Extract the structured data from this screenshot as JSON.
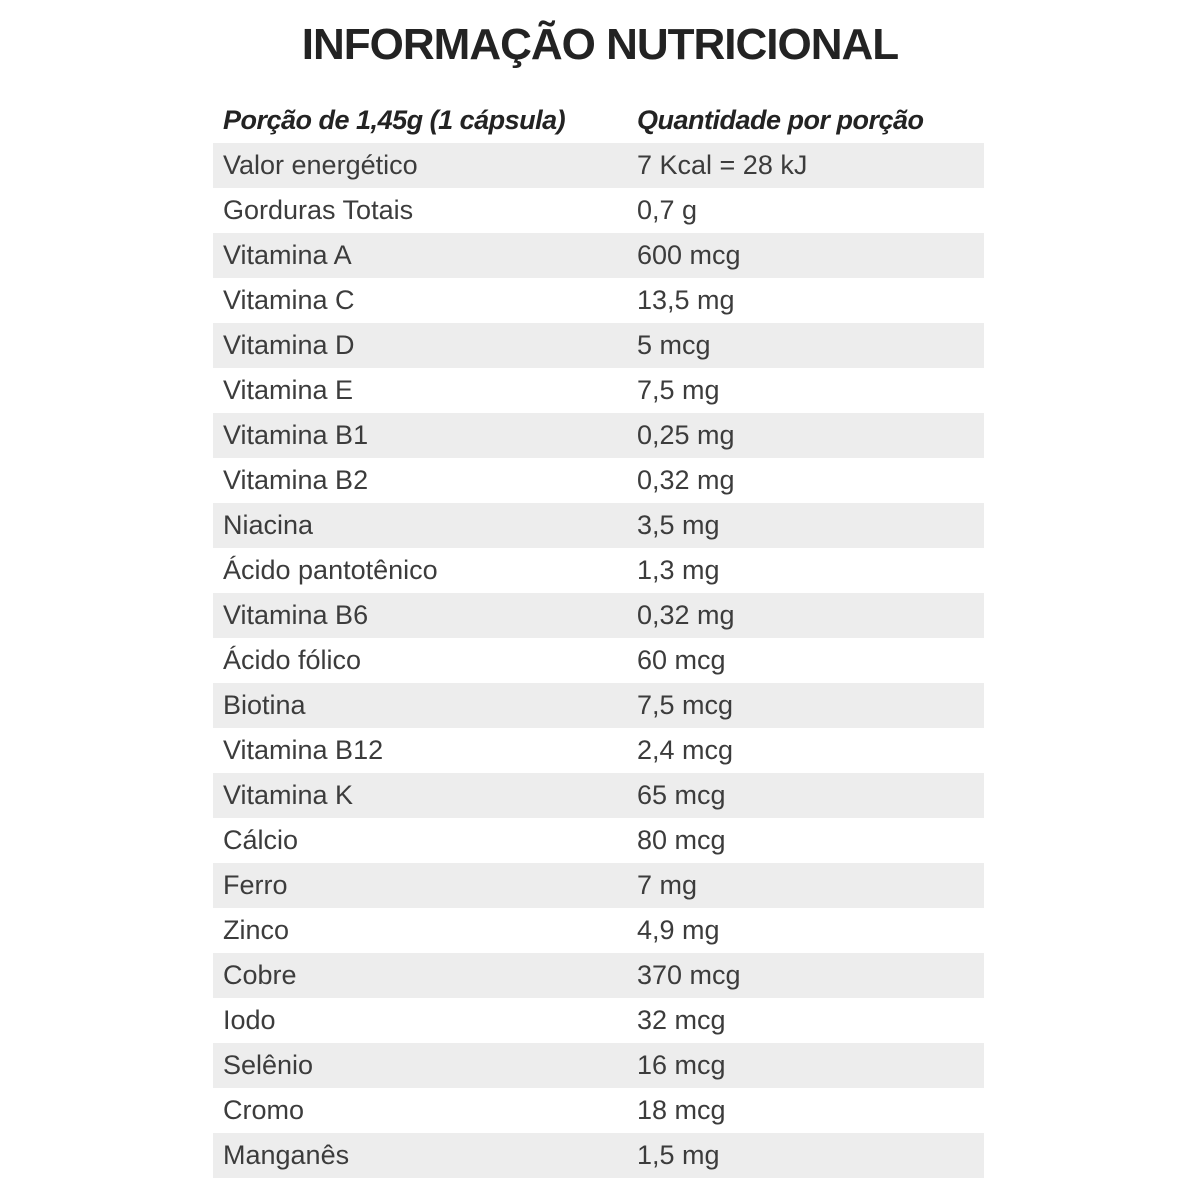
{
  "title": "INFORMAÇÃO NUTRICIONAL",
  "table": {
    "header": {
      "col1": "Porção de 1,45g (1 cápsula)",
      "col2": "Quantidade por porção"
    },
    "rows": [
      {
        "label": "Valor energético",
        "value": "7 Kcal = 28 kJ"
      },
      {
        "label": "Gorduras Totais",
        "value": "0,7 g"
      },
      {
        "label": "Vitamina A",
        "value": "600 mcg"
      },
      {
        "label": "Vitamina C",
        "value": "13,5 mg"
      },
      {
        "label": "Vitamina D",
        "value": "5 mcg"
      },
      {
        "label": "Vitamina E",
        "value": "7,5 mg"
      },
      {
        "label": "Vitamina B1",
        "value": "0,25 mg"
      },
      {
        "label": "Vitamina B2",
        "value": "0,32 mg"
      },
      {
        "label": "Niacina",
        "value": "3,5 mg"
      },
      {
        "label": "Ácido pantotênico",
        "value": "1,3 mg"
      },
      {
        "label": "Vitamina B6",
        "value": "0,32 mg"
      },
      {
        "label": "Ácido fólico",
        "value": "60 mcg"
      },
      {
        "label": "Biotina",
        "value": "7,5 mcg"
      },
      {
        "label": "Vitamina B12",
        "value": "2,4 mcg"
      },
      {
        "label": "Vitamina K",
        "value": "65 mcg"
      },
      {
        "label": "Cálcio",
        "value": "80 mcg"
      },
      {
        "label": "Ferro",
        "value": "7 mg"
      },
      {
        "label": "Zinco",
        "value": "4,9 mg"
      },
      {
        "label": "Cobre",
        "value": "370 mcg"
      },
      {
        "label": "Iodo",
        "value": "32 mcg"
      },
      {
        "label": "Selênio",
        "value": "16 mcg"
      },
      {
        "label": "Cromo",
        "value": "18 mcg"
      },
      {
        "label": "Manganês",
        "value": "1,5 mg"
      }
    ]
  },
  "colors": {
    "row_band": "#ededed",
    "row_text": "#3c3c3c",
    "heading_text": "#232323"
  }
}
